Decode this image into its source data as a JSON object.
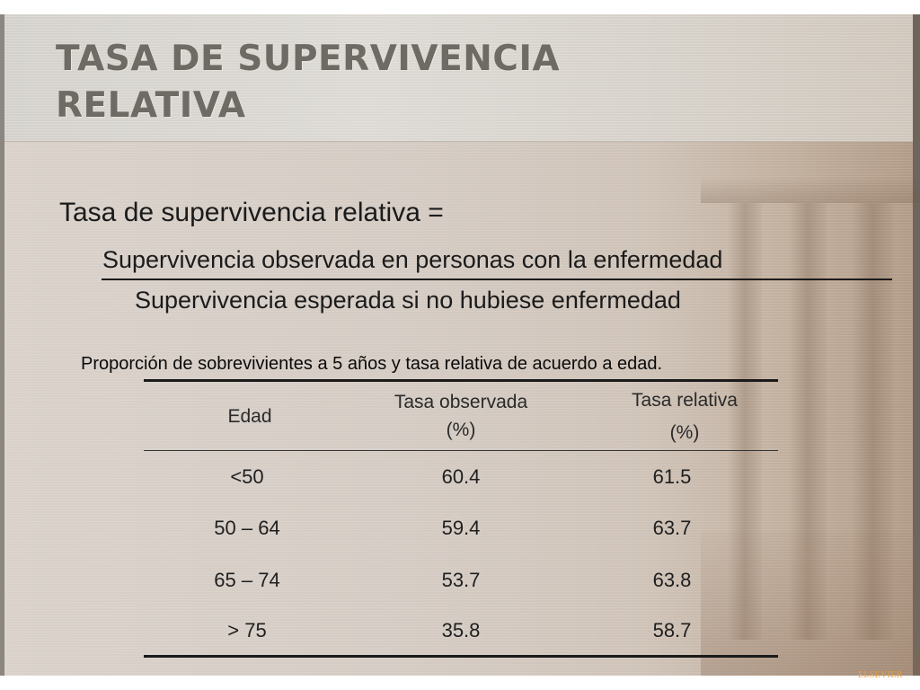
{
  "slide": {
    "title_line1": "TASA DE SUPERVIVENCIA",
    "title_line2": "RELATIVA",
    "formula": {
      "lead": "Tasa de supervivencia relativa =",
      "numerator": "Supervivencia observada en personas con la enfermedad",
      "denominator": "Supervivencia esperada si no hubiese enfermedad"
    },
    "caption": "Proporción  de sobrevivientes a 5 años y tasa relativa de acuerdo a edad.",
    "table": {
      "headers": [
        {
          "line1": "Edad",
          "line2": ""
        },
        {
          "line1": "Tasa observada",
          "line2": "(%)"
        },
        {
          "line1": "Tasa relativa",
          "line2": "(%)"
        }
      ],
      "rows": [
        {
          "edad": "<50",
          "observada": "60.4",
          "relativa": "61.5"
        },
        {
          "edad": "50 – 64",
          "observada": "59.4",
          "relativa": "63.7"
        },
        {
          "edad": "65 – 74",
          "observada": "53.7",
          "relativa": "63.8"
        },
        {
          "edad": "> 75",
          "observada": "35.8",
          "relativa": "58.7"
        }
      ]
    },
    "publisher": "ELSEVIER"
  }
}
